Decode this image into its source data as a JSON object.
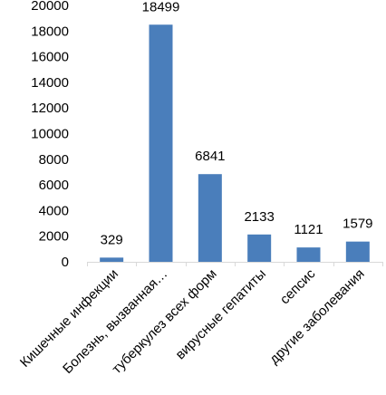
{
  "colors": {
    "bar": "#4a7ebb",
    "axis": "#d9d9d9",
    "text": "#000000",
    "background": "#ffffff"
  },
  "chart_data": {
    "type": "bar",
    "categories": [
      "Кишечные инфекции",
      "Болезнь, вызванная…",
      "туберкулез всех форм",
      "вирусные гепатиты",
      "сепсис",
      "другие заболевания"
    ],
    "values": [
      329,
      18499,
      6841,
      2133,
      1121,
      1579
    ],
    "data_labels": [
      "329",
      "18499",
      "6841",
      "2133",
      "1121",
      "1579"
    ],
    "ylim": [
      0,
      20000
    ],
    "yticks": [
      0,
      2000,
      4000,
      6000,
      8000,
      10000,
      12000,
      14000,
      16000,
      18000,
      20000
    ],
    "grid": false,
    "legend": "none",
    "title": "",
    "xlabel": "",
    "ylabel": ""
  }
}
